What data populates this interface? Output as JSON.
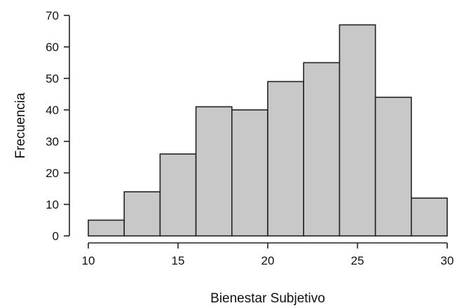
{
  "chart_data": {
    "type": "bar",
    "subtype": "histogram",
    "title": "",
    "xlabel": "Bienestar Subjetivo",
    "ylabel": "Frecuencia",
    "bins": [
      {
        "start": 10,
        "end": 12,
        "count": 5
      },
      {
        "start": 12,
        "end": 14,
        "count": 14
      },
      {
        "start": 14,
        "end": 16,
        "count": 26
      },
      {
        "start": 16,
        "end": 18,
        "count": 41
      },
      {
        "start": 18,
        "end": 20,
        "count": 40
      },
      {
        "start": 20,
        "end": 22,
        "count": 49
      },
      {
        "start": 22,
        "end": 24,
        "count": 55
      },
      {
        "start": 24,
        "end": 26,
        "count": 67
      },
      {
        "start": 26,
        "end": 28,
        "count": 44
      },
      {
        "start": 28,
        "end": 30,
        "count": 12
      }
    ],
    "xlim": [
      10,
      30
    ],
    "ylim": [
      0,
      70
    ],
    "xticks": [
      "10",
      "15",
      "20",
      "25",
      "30"
    ],
    "yticks": [
      "0",
      "10",
      "20",
      "30",
      "40",
      "50",
      "60",
      "70"
    ],
    "grid": false,
    "legend": "none",
    "colors": {
      "bar_fill": "#c8c8c8",
      "bar_stroke": "#222222",
      "axis": "#222222"
    }
  }
}
